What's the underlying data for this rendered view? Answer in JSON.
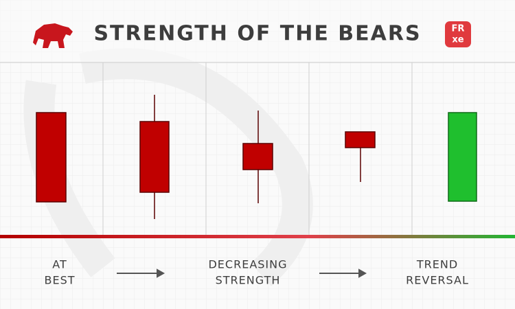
{
  "header": {
    "title": "STRENGTH OF THE BEARS",
    "logo": {
      "top": "FR",
      "bottom": "xe"
    }
  },
  "stages": [
    {
      "lines": [
        "AT",
        "BEST"
      ]
    },
    {
      "lines": [
        "DECREASING",
        "STRENGTH"
      ]
    },
    {
      "lines": [
        "TREND",
        "REVERSAL"
      ]
    }
  ]
}
